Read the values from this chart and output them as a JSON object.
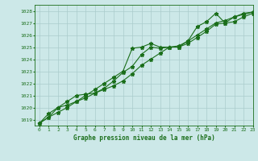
{
  "title": "Graphe pression niveau de la mer (hPa)",
  "background_color": "#cce8e8",
  "grid_color": "#aacccc",
  "line_color": "#1a6e1a",
  "marker_color": "#1a6e1a",
  "xlim": [
    -0.5,
    23
  ],
  "ylim": [
    1018.5,
    1028.5
  ],
  "yticks": [
    1019,
    1020,
    1021,
    1022,
    1023,
    1024,
    1025,
    1026,
    1027,
    1028
  ],
  "xticks": [
    0,
    1,
    2,
    3,
    4,
    5,
    6,
    7,
    8,
    9,
    10,
    11,
    12,
    13,
    14,
    15,
    16,
    17,
    18,
    19,
    20,
    21,
    22,
    23
  ],
  "series": [
    [
      1018.7,
      1019.2,
      1019.6,
      1020.0,
      1020.5,
      1021.0,
      1021.5,
      1022.0,
      1022.5,
      1023.0,
      1024.9,
      1025.0,
      1025.3,
      1025.0,
      1025.0,
      1025.0,
      1025.5,
      1026.7,
      1027.1,
      1027.8,
      1027.0,
      1027.5,
      1027.8,
      1027.9
    ],
    [
      1018.7,
      1019.2,
      1020.0,
      1020.5,
      1021.0,
      1021.1,
      1021.2,
      1021.6,
      1022.2,
      1022.9,
      1023.4,
      1024.4,
      1025.0,
      1024.9,
      1025.0,
      1025.0,
      1025.3,
      1025.8,
      1026.3,
      1026.9,
      1027.0,
      1027.1,
      1027.5,
      1027.8
    ],
    [
      1018.7,
      1019.5,
      1020.0,
      1020.2,
      1020.5,
      1020.8,
      1021.2,
      1021.5,
      1021.8,
      1022.2,
      1022.8,
      1023.5,
      1024.0,
      1024.5,
      1025.0,
      1025.1,
      1025.5,
      1026.0,
      1026.5,
      1027.0,
      1027.2,
      1027.5,
      1027.7,
      1027.9
    ]
  ]
}
